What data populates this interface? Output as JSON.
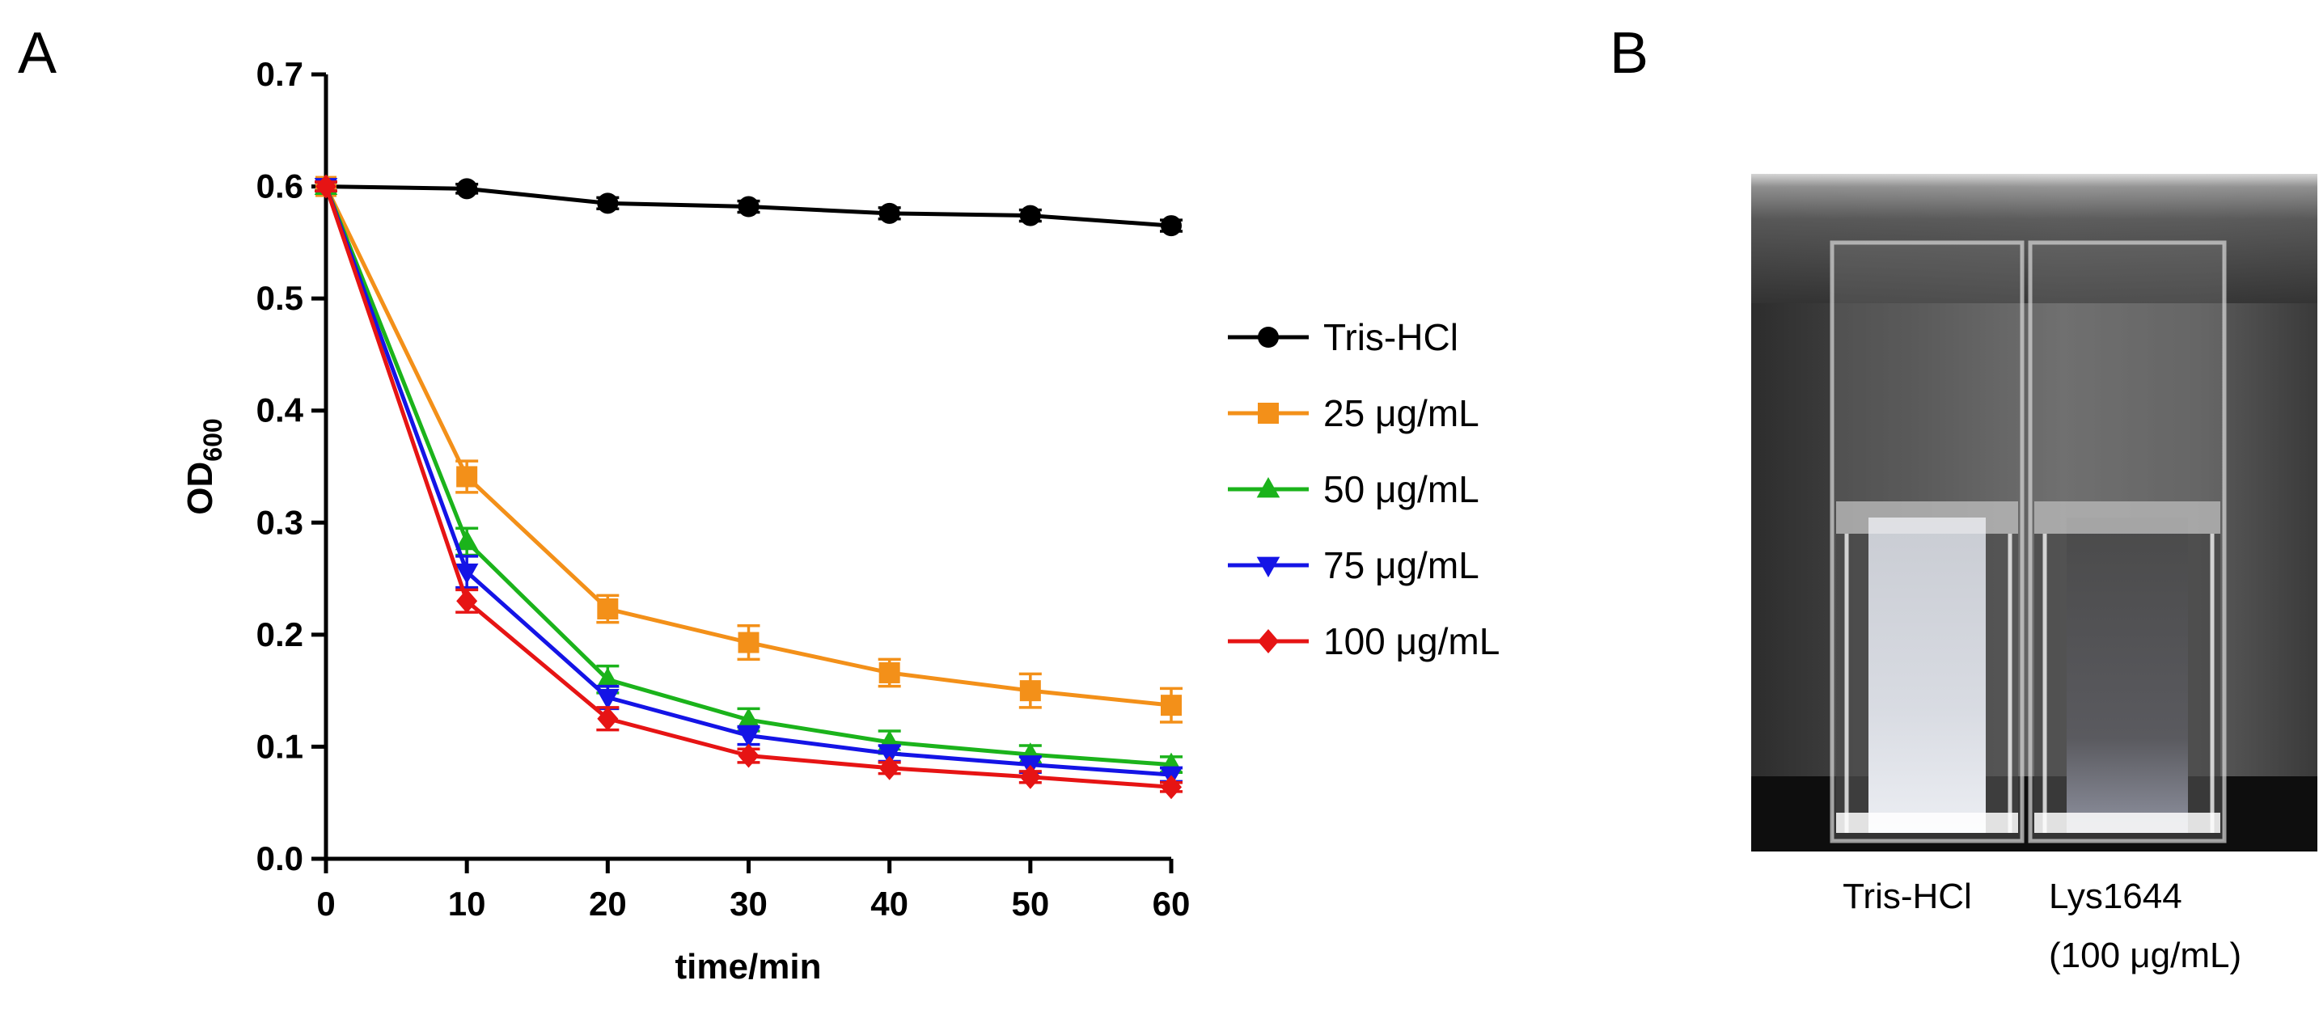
{
  "panel_a": {
    "letter": "A"
  },
  "panel_b": {
    "letter": "B",
    "captions": {
      "left": "Tris-HCl",
      "right_line1": "Lys1644",
      "right_line2": "(100 μg/mL)"
    }
  },
  "chart_data": {
    "type": "line",
    "title": "",
    "xlabel": "time/min",
    "ylabel": {
      "main": "OD",
      "sub": "600"
    },
    "x": [
      0,
      10,
      20,
      30,
      40,
      50,
      60
    ],
    "xlim": [
      0,
      60
    ],
    "ylim": [
      0.0,
      0.7
    ],
    "x_ticks": [
      "0",
      "10",
      "20",
      "30",
      "40",
      "50",
      "60"
    ],
    "y_ticks": [
      "0.0",
      "0.1",
      "0.2",
      "0.3",
      "0.4",
      "0.5",
      "0.6",
      "0.7"
    ],
    "grid": false,
    "legend_position": "right",
    "series": [
      {
        "name": "Tris-HCl",
        "color": "#000000",
        "marker": "circle",
        "values": [
          0.6,
          0.598,
          0.585,
          0.582,
          0.576,
          0.574,
          0.565
        ],
        "errors": [
          0.004,
          0.004,
          0.005,
          0.005,
          0.005,
          0.005,
          0.005
        ]
      },
      {
        "name": "25 μg/mL",
        "color": "#F39019",
        "marker": "square",
        "values": [
          0.6,
          0.341,
          0.223,
          0.193,
          0.166,
          0.15,
          0.137
        ],
        "errors": [
          0.004,
          0.014,
          0.012,
          0.015,
          0.012,
          0.015,
          0.015
        ]
      },
      {
        "name": "50 μg/mL",
        "color": "#1BB31B",
        "marker": "triangle-up",
        "values": [
          0.6,
          0.283,
          0.16,
          0.124,
          0.104,
          0.093,
          0.084
        ],
        "errors": [
          0.004,
          0.012,
          0.012,
          0.01,
          0.01,
          0.008,
          0.007
        ]
      },
      {
        "name": "75 μg/mL",
        "color": "#1414E6",
        "marker": "triangle-down",
        "values": [
          0.6,
          0.256,
          0.144,
          0.11,
          0.094,
          0.084,
          0.075
        ],
        "errors": [
          0.004,
          0.014,
          0.01,
          0.008,
          0.007,
          0.007,
          0.006
        ]
      },
      {
        "name": "100 μg/mL",
        "color": "#E61414",
        "marker": "diamond",
        "values": [
          0.6,
          0.23,
          0.125,
          0.092,
          0.081,
          0.073,
          0.064
        ],
        "errors": [
          0.004,
          0.01,
          0.01,
          0.006,
          0.005,
          0.005,
          0.004
        ]
      }
    ]
  }
}
